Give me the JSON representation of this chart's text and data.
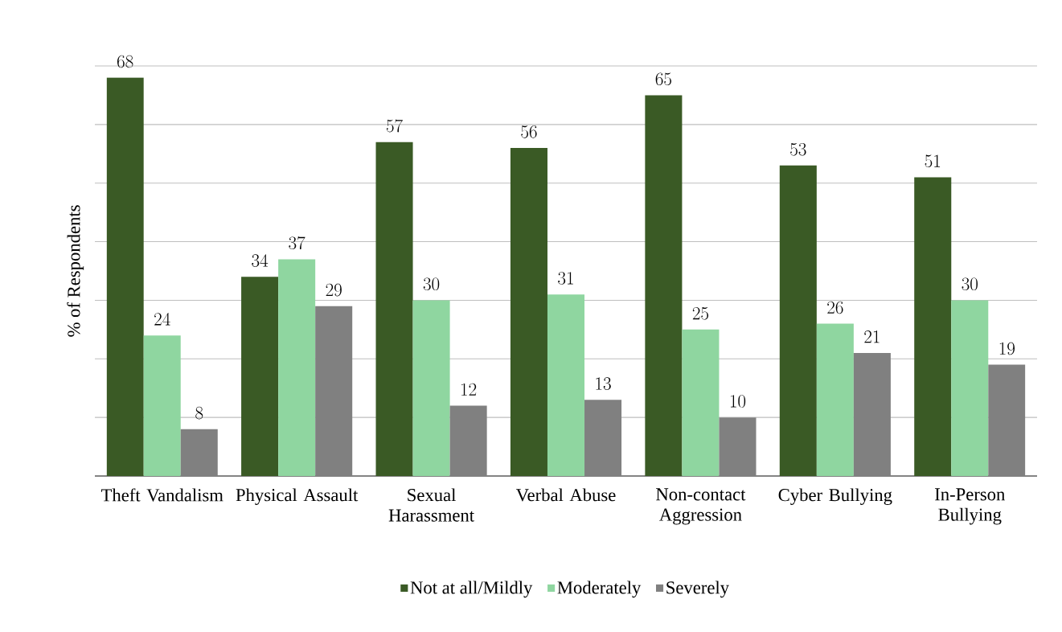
{
  "chart_data": {
    "type": "bar",
    "ylabel": "% of Respondents",
    "categories": [
      "Theft Vandalism",
      "Physical Assault",
      "Sexual Harassment",
      "Verbal Abuse",
      "Non-contact Aggression",
      "Cyber Bullying",
      "In-Person Bullying"
    ],
    "series": [
      {
        "name": "Not at all/Mildly",
        "color": "#3a5a25",
        "values": [
          68,
          34,
          57,
          56,
          65,
          53,
          51
        ]
      },
      {
        "name": "Moderately",
        "color": "#8fd6a0",
        "values": [
          24,
          37,
          30,
          31,
          25,
          26,
          30
        ]
      },
      {
        "name": "Severely",
        "color": "#808080",
        "values": [
          8,
          29,
          12,
          13,
          10,
          21,
          19
        ]
      }
    ],
    "ylim": [
      0,
      70
    ],
    "yticks": [
      {
        "value": 0,
        "label": null
      },
      {
        "value": 10,
        "label": null
      },
      {
        "value": 20,
        "label": null
      },
      {
        "value": 30,
        "label": null
      },
      {
        "value": 40,
        "label": null
      },
      {
        "value": 50,
        "label": null
      },
      {
        "value": 60,
        "label": null
      },
      {
        "value": 70,
        "label": null
      }
    ],
    "tick_labels": "x",
    "grid": "y",
    "legend": "bottom",
    "data_labels": true
  }
}
